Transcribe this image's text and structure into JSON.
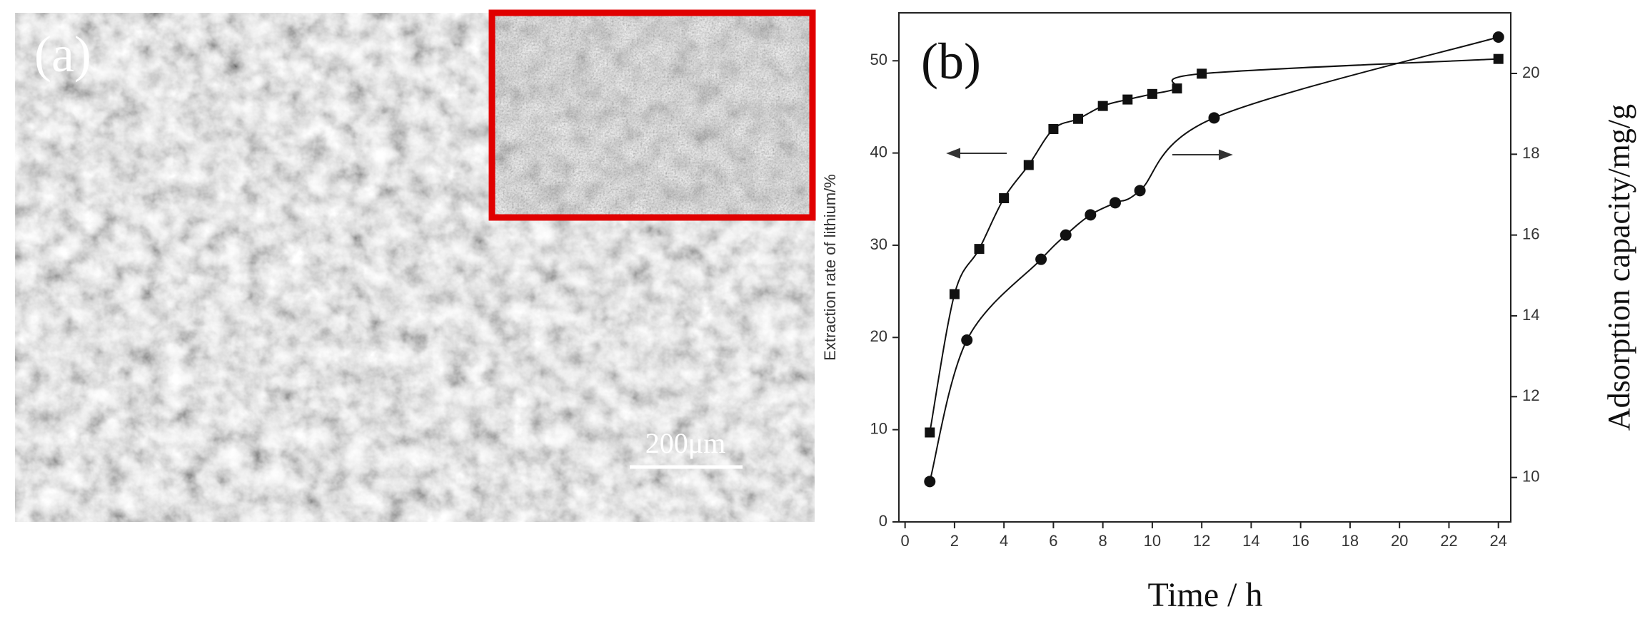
{
  "panel_a": {
    "label": "(a)",
    "scale_bar": "200μm"
  },
  "chart_data": {
    "type": "line",
    "label": "(b)",
    "x_label": "Time / h",
    "y_label": "Extraction rate of lithium/%",
    "y2_label": "Adsorption capacity/mg/g",
    "xlim": [
      -0.25,
      24.5
    ],
    "xticks": [
      0,
      2,
      4,
      6,
      8,
      10,
      12,
      14,
      16,
      18,
      20,
      22,
      24
    ],
    "ylim": [
      0,
      55.2
    ],
    "yticks": [
      0,
      10,
      20,
      30,
      40,
      50
    ],
    "y2lim": [
      8.9,
      21.5
    ],
    "y2ticks": [
      10,
      12,
      14,
      16,
      18,
      20
    ],
    "series": [
      {
        "marker": "square",
        "color": "#111111",
        "x": [
          1,
          2,
          3,
          4,
          5,
          6,
          7,
          8,
          9,
          10,
          11,
          12,
          24
        ],
        "values": [
          9.7,
          24.7,
          29.6,
          35.1,
          38.7,
          42.6,
          43.7,
          45.1,
          45.8,
          46.4,
          47.0,
          48.6,
          50.2
        ]
      },
      {
        "marker": "circle",
        "color": "#111111",
        "axis": "y2",
        "x": [
          1,
          2.5,
          5.5,
          6.5,
          7.5,
          8.5,
          9.5,
          12.5,
          24
        ],
        "values": [
          9.9,
          13.4,
          15.4,
          16.0,
          16.5,
          16.8,
          17.1,
          18.9,
          20.9
        ]
      }
    ]
  }
}
